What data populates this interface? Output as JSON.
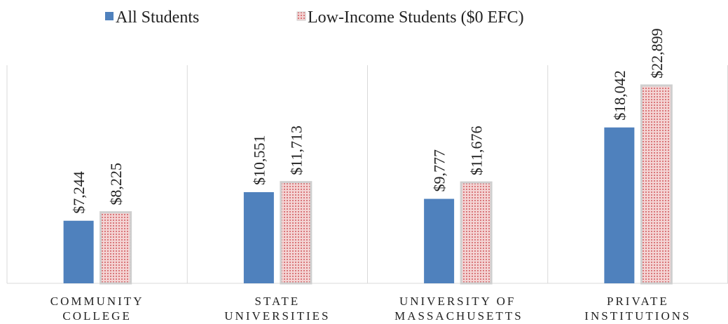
{
  "chart_data": {
    "type": "bar",
    "categories": [
      "COMMUNITY COLLEGE",
      "STATE UNIVERSITIES",
      "UNIVERSITY OF MASSACHUSETTS",
      "PRIVATE INSTITUTIONS"
    ],
    "series": [
      {
        "name": "All Students",
        "color": "#4f81bd",
        "values": [
          7244,
          10551,
          9777,
          18042
        ],
        "value_labels": [
          "$7,244",
          "$10,551",
          "$9,777",
          "$18,042"
        ]
      },
      {
        "name": "Low-Income Students ($0 EFC)",
        "color": "#e8a3a3",
        "values": [
          8225,
          11713,
          11676,
          22899
        ],
        "value_labels": [
          "$8,225",
          "$11,713",
          "$11,676",
          "$22,899"
        ]
      }
    ],
    "legend": "top"
  }
}
